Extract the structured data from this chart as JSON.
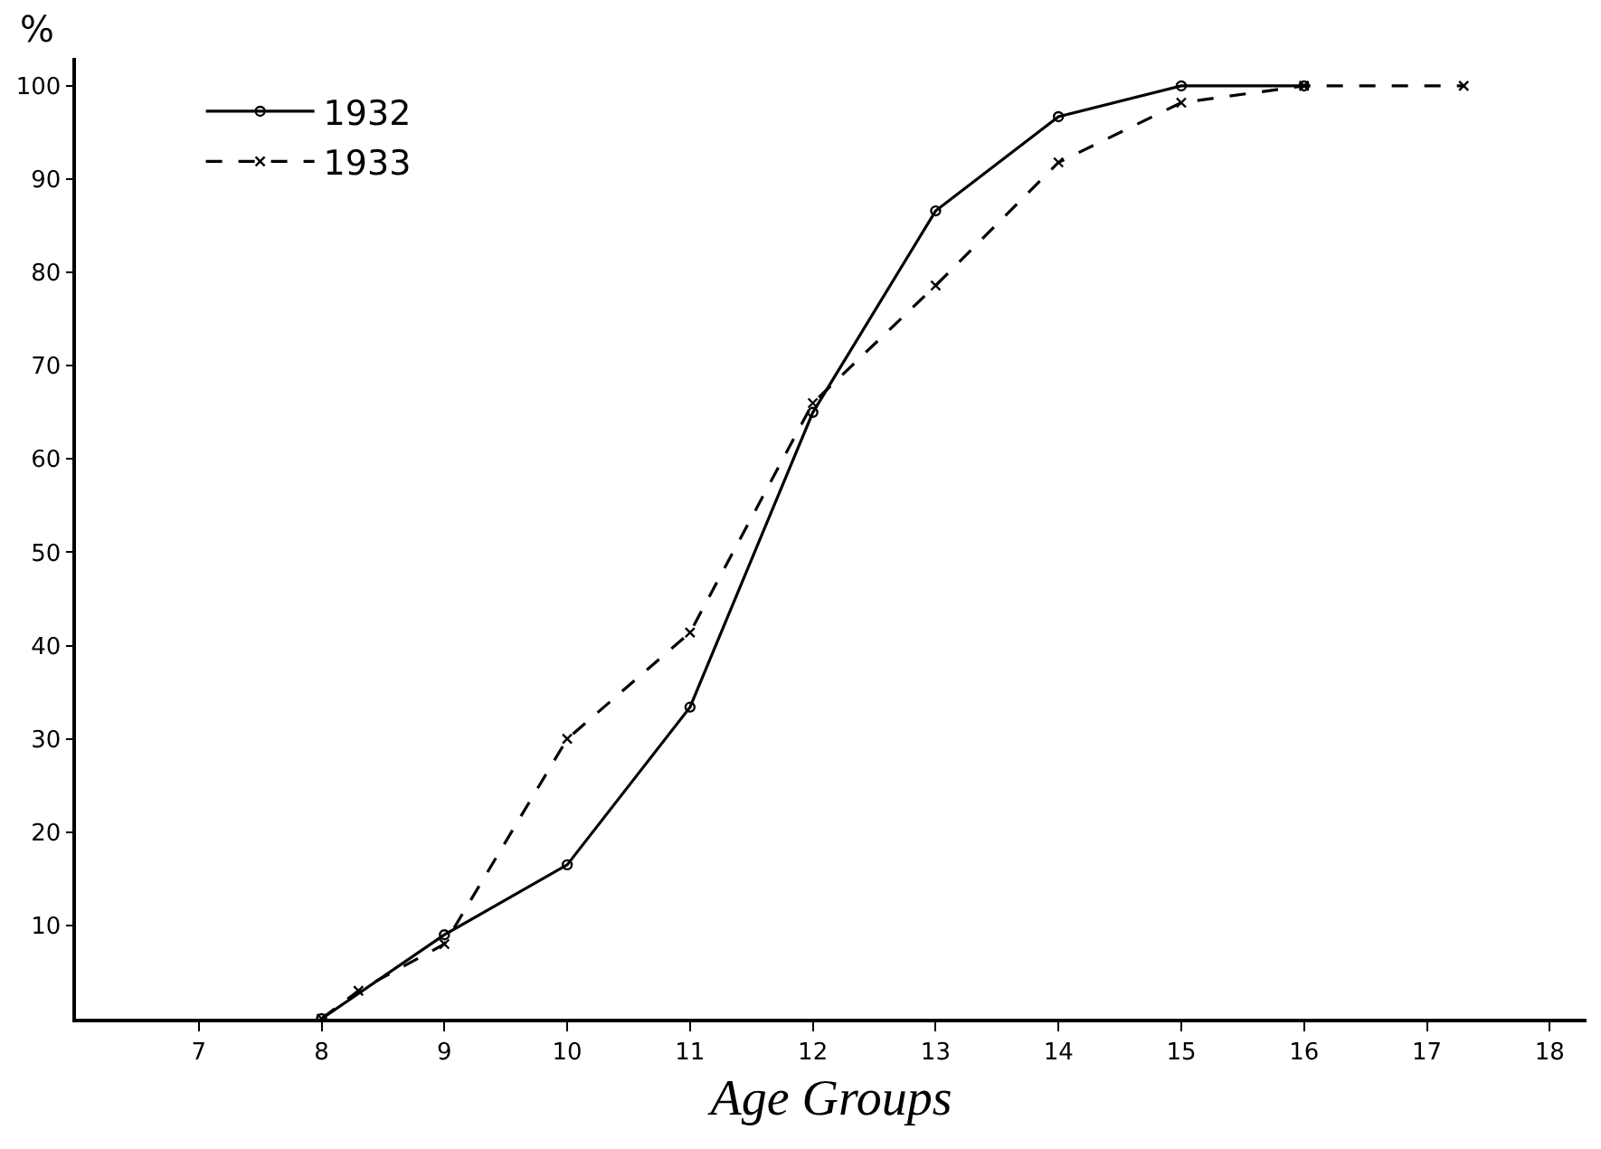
{
  "chart_data": {
    "type": "line",
    "xlabel": "Age Groups",
    "ylabel": "%",
    "xlim": [
      6,
      18.3
    ],
    "xticks": [
      7,
      8,
      9,
      10,
      11,
      12,
      13,
      14,
      15,
      16,
      17,
      18
    ],
    "ylim": [
      0,
      103
    ],
    "yticks": [
      10,
      20,
      30,
      40,
      50,
      60,
      70,
      80,
      90,
      100
    ],
    "grid": false,
    "legend": "top left",
    "series": [
      {
        "name": "1932",
        "color": "#000000",
        "line_style": "solid",
        "marker": "circle",
        "x": [
          8,
          9,
          10,
          11,
          12,
          13,
          14,
          15,
          16
        ],
        "values": [
          0,
          9,
          16.5,
          33.4,
          65,
          86.6,
          96.7,
          100,
          100
        ]
      },
      {
        "name": "1933",
        "color": "#000000",
        "line_style": "dashed",
        "marker": "cross",
        "x": [
          8,
          8.3,
          9,
          10,
          11,
          12,
          13,
          14,
          15,
          16,
          17.3
        ],
        "values": [
          0,
          3,
          8,
          30,
          41.4,
          66,
          78.6,
          91.8,
          98.2,
          100,
          100
        ]
      }
    ]
  }
}
